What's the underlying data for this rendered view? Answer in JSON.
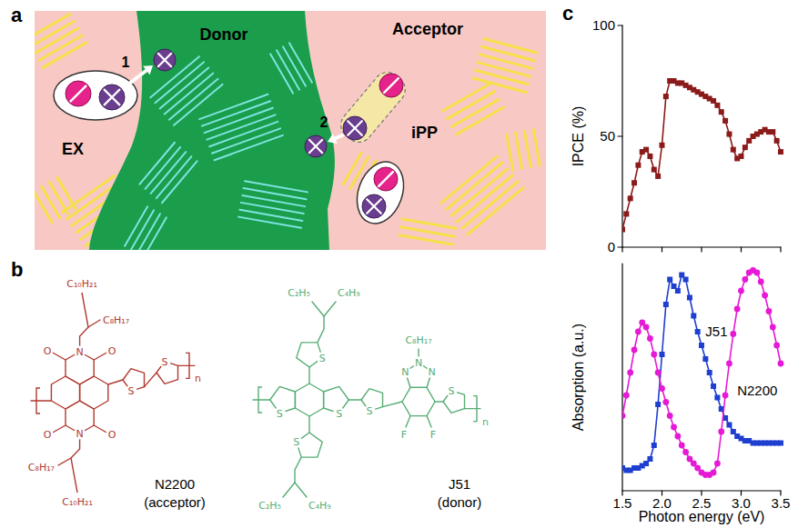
{
  "panel_labels": [
    "a",
    "b",
    "c"
  ],
  "diagram": {
    "regions": [
      "Donor",
      "Acceptor"
    ],
    "states": [
      "EX",
      "iPP"
    ],
    "steps": [
      "1",
      "2"
    ]
  },
  "structures": [
    {
      "name": "N2200",
      "role": "(acceptor)",
      "atoms": [
        "O",
        "O",
        "N",
        "O",
        "O",
        "N",
        "S",
        "S"
      ],
      "side_chains": [
        "C₁₀H₂₁",
        "C₈H₁₇",
        "C₈H₁₇",
        "C₁₀H₂₁"
      ],
      "repeat": "n"
    },
    {
      "name": "J51",
      "role": "(donor)",
      "atoms": [
        "S",
        "S",
        "S",
        "S",
        "N",
        "N",
        "N",
        "F",
        "F",
        "S",
        "S"
      ],
      "side_chains": [
        "C₂H₅",
        "C₄H₉",
        "C₂H₅",
        "C₄H₉",
        "C₈H₁₇"
      ],
      "repeat": "n"
    }
  ],
  "chart_data": [
    {
      "type": "line",
      "y_label": "IPCE (%)",
      "x": [
        1.5,
        1.55,
        1.6,
        1.65,
        1.7,
        1.75,
        1.8,
        1.85,
        1.9,
        1.95,
        2,
        2.05,
        2.1,
        2.15,
        2.2,
        2.25,
        2.3,
        2.35,
        2.4,
        2.45,
        2.5,
        2.55,
        2.6,
        2.65,
        2.7,
        2.75,
        2.8,
        2.85,
        2.9,
        2.95,
        3,
        3.05,
        3.1,
        3.15,
        3.2,
        3.25,
        3.3,
        3.35,
        3.4,
        3.45,
        3.5
      ],
      "values": [
        8,
        15,
        22,
        29,
        37,
        43,
        44,
        41,
        35,
        32,
        46,
        68,
        75,
        75,
        74,
        74,
        73,
        72,
        71,
        70,
        69,
        68,
        67,
        66,
        64,
        61,
        57,
        51,
        44,
        40,
        41,
        45,
        48,
        50,
        51,
        52,
        53,
        52,
        52,
        48,
        43
      ],
      "color": "#8b1a1a",
      "marker": "square",
      "line_style": "solid",
      "xlim": [
        1.5,
        3.5
      ],
      "xticks": [
        1.5,
        2,
        2.5,
        3,
        3.5
      ],
      "ylim": [
        0,
        100
      ],
      "yticks": [
        0,
        50,
        100
      ],
      "tick_labels": "y"
    },
    {
      "type": "line",
      "x_label": "Photon energy (eV)",
      "y_label": "Absorption (a.u.)",
      "x": [
        1.5,
        1.55,
        1.6,
        1.65,
        1.7,
        1.75,
        1.8,
        1.85,
        1.9,
        1.95,
        2,
        2.05,
        2.1,
        2.15,
        2.2,
        2.25,
        2.3,
        2.35,
        2.4,
        2.45,
        2.5,
        2.55,
        2.6,
        2.65,
        2.7,
        2.75,
        2.8,
        2.85,
        2.9,
        2.95,
        3,
        3.05,
        3.1,
        3.15,
        3.2,
        3.25,
        3.3,
        3.35,
        3.4,
        3.45,
        3.5
      ],
      "series": [
        {
          "name": "J51",
          "color": "#1f3fd0",
          "marker": "square",
          "values": [
            0.1,
            0.09,
            0.09,
            0.1,
            0.1,
            0.11,
            0.12,
            0.14,
            0.2,
            0.38,
            0.6,
            0.82,
            0.93,
            0.9,
            0.88,
            0.95,
            0.93,
            0.85,
            0.77,
            0.7,
            0.64,
            0.58,
            0.52,
            0.46,
            0.41,
            0.36,
            0.32,
            0.29,
            0.26,
            0.24,
            0.23,
            0.22,
            0.22,
            0.21,
            0.21,
            0.21,
            0.21,
            0.21,
            0.21,
            0.21,
            0.21
          ]
        },
        {
          "name": "N2200",
          "color": "#e619d6",
          "marker": "circle",
          "values": [
            0.33,
            0.42,
            0.52,
            0.62,
            0.7,
            0.74,
            0.72,
            0.67,
            0.6,
            0.52,
            0.45,
            0.39,
            0.33,
            0.28,
            0.24,
            0.2,
            0.17,
            0.14,
            0.12,
            0.1,
            0.08,
            0.07,
            0.07,
            0.08,
            0.12,
            0.26,
            0.42,
            0.56,
            0.69,
            0.8,
            0.88,
            0.93,
            0.96,
            0.97,
            0.96,
            0.92,
            0.86,
            0.79,
            0.72,
            0.64,
            0.56
          ]
        }
      ],
      "line_style": "solid",
      "xlim": [
        1.5,
        3.5
      ],
      "xticks": [
        1.5,
        {
          "value": 2,
          "label": "2.0"
        },
        2.5,
        {
          "value": 3,
          "label": "3.0"
        },
        3.5
      ],
      "ylim": [
        0,
        1
      ],
      "tick_labels": "x"
    }
  ]
}
